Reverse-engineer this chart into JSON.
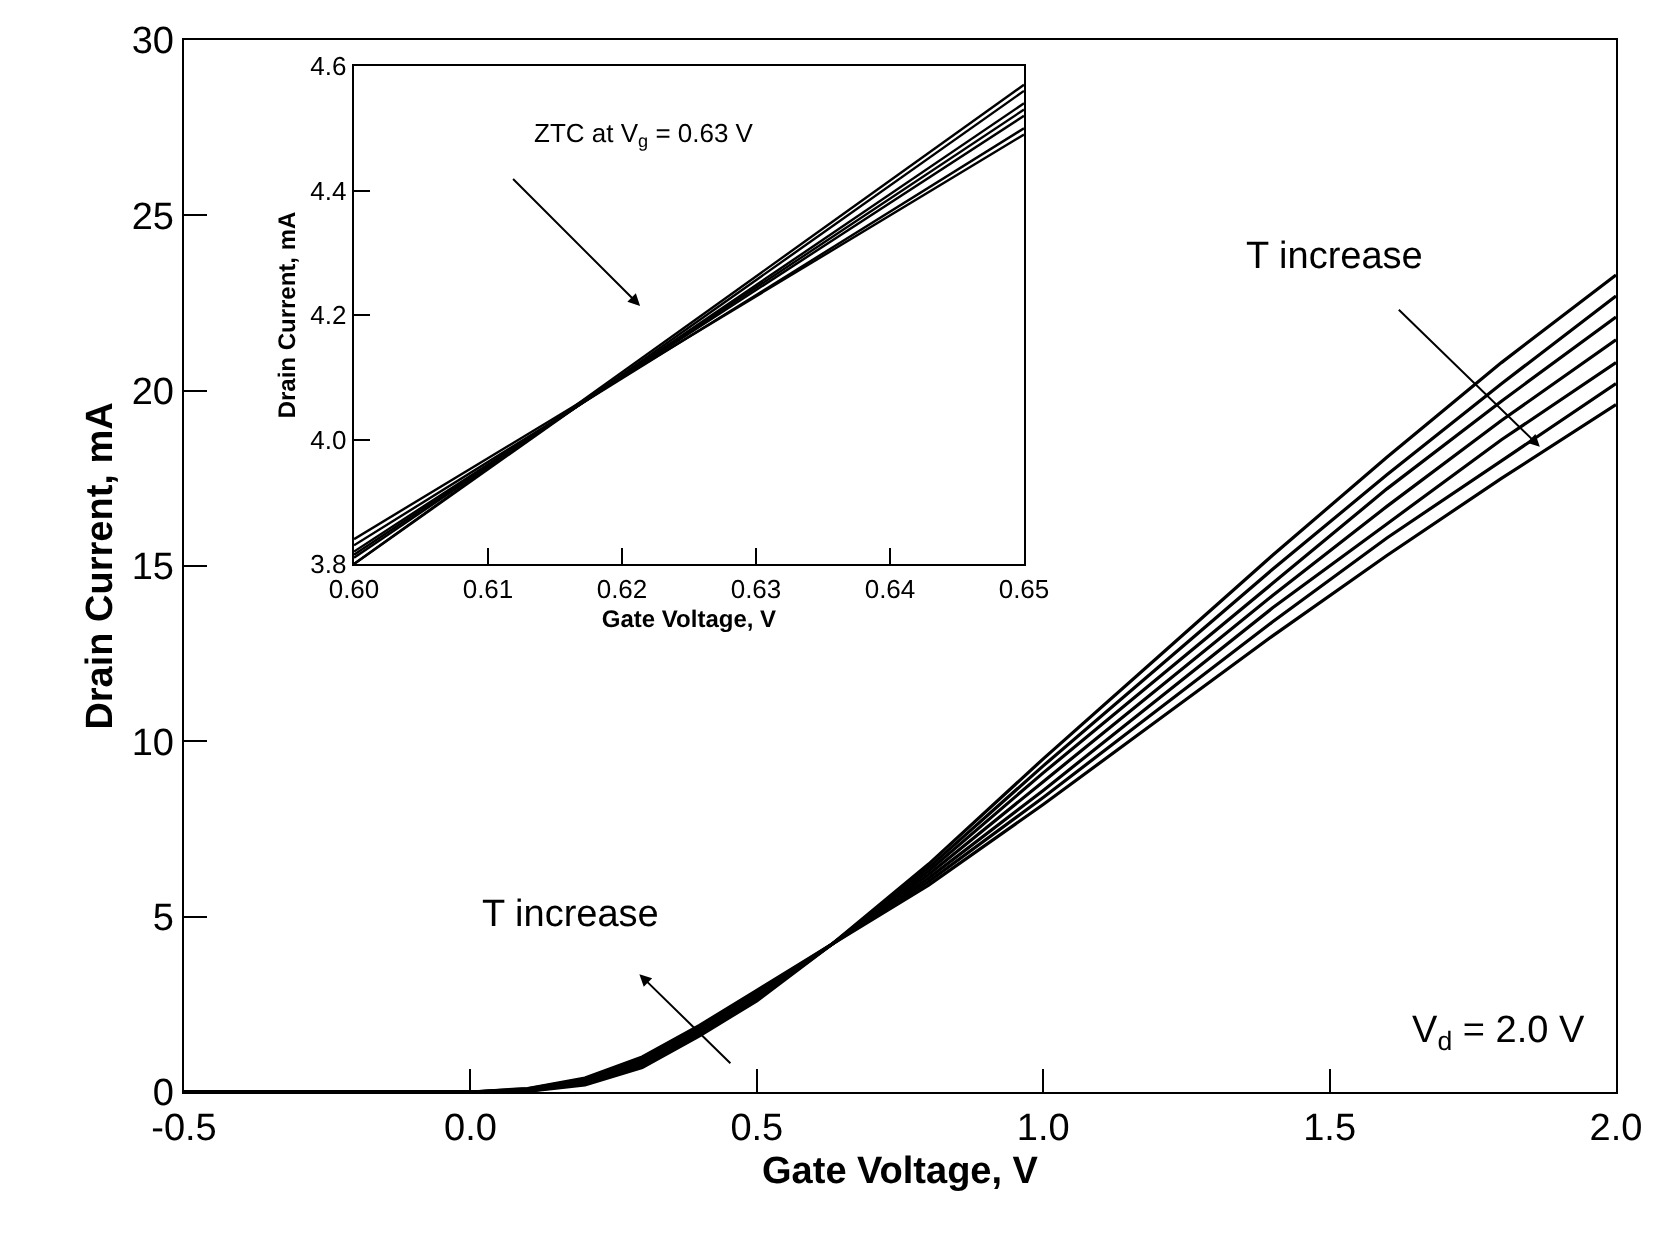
{
  "chart_data": [
    {
      "type": "line",
      "xlabel": "Gate Voltage, V",
      "ylabel": "Drain Current, mA",
      "x": [
        -0.5,
        0,
        0.1,
        0.2,
        0.3,
        0.4,
        0.5,
        0.63,
        0.8,
        1.0,
        1.2,
        1.4,
        1.6,
        1.8,
        2.0
      ],
      "series": [
        {
          "color": "#000000",
          "values": [
            0,
            0,
            0.02,
            0.2,
            0.7,
            1.6,
            2.6,
            4.2,
            6.5,
            9.5,
            12.4,
            15.3,
            18.1,
            20.8,
            23.3
          ]
        },
        {
          "color": "#000000",
          "values": [
            0,
            0,
            0.03,
            0.23,
            0.75,
            1.65,
            2.65,
            4.2,
            6.4,
            9.3,
            12.1,
            14.9,
            17.6,
            20.2,
            22.7
          ]
        },
        {
          "color": "#000000",
          "values": [
            0,
            0,
            0.05,
            0.27,
            0.8,
            1.7,
            2.7,
            4.2,
            6.3,
            9.1,
            11.8,
            14.5,
            17.2,
            19.7,
            22.1
          ]
        },
        {
          "color": "#000000",
          "values": [
            0,
            0,
            0.06,
            0.3,
            0.85,
            1.75,
            2.75,
            4.2,
            6.2,
            8.85,
            11.5,
            14.15,
            16.7,
            19.15,
            21.45
          ]
        },
        {
          "color": "#000000",
          "values": [
            0,
            0,
            0.07,
            0.33,
            0.9,
            1.8,
            2.8,
            4.2,
            6.1,
            8.6,
            11.2,
            13.8,
            16.2,
            18.6,
            20.8
          ]
        },
        {
          "color": "#000000",
          "values": [
            0,
            0,
            0.09,
            0.37,
            0.95,
            1.85,
            2.85,
            4.2,
            6.0,
            8.4,
            10.9,
            13.4,
            15.8,
            18.0,
            20.2
          ]
        },
        {
          "color": "#000000",
          "values": [
            0,
            0,
            0.1,
            0.4,
            1.0,
            1.9,
            2.9,
            4.2,
            5.9,
            8.2,
            10.6,
            13.0,
            15.3,
            17.5,
            19.6
          ]
        }
      ],
      "xlim": [
        -0.5,
        2.0
      ],
      "ylim": [
        0,
        30
      ],
      "xticks": [
        -0.5,
        {
          "value": 0,
          "label": "0.0"
        },
        0.5,
        {
          "value": 1,
          "label": "1.0"
        },
        1.5,
        {
          "value": 2,
          "label": "2.0"
        }
      ],
      "yticks": [
        0,
        5,
        10,
        15,
        20,
        25,
        30
      ],
      "grid": false,
      "marker": "none",
      "line_style": "solid",
      "annotations": [
        "T increase",
        {
          "text": "T increase",
          "x": 1.867,
          "y": 18.4
        },
        "V$_{d}$ = 2.0 V"
      ]
    },
    {
      "type": "line",
      "xlabel": "Gate Voltage, V",
      "ylabel": "Drain Current, mA",
      "x": [
        0.6,
        0.65
      ],
      "series": [
        {
          "color": "#000000",
          "values": [
            3.8,
            4.57
          ]
        },
        {
          "color": "#000000",
          "values": [
            3.8,
            4.56
          ]
        },
        {
          "color": "#000000",
          "values": [
            3.81,
            4.54
          ]
        },
        {
          "color": "#000000",
          "values": [
            3.815,
            4.53
          ]
        },
        {
          "color": "#000000",
          "values": [
            3.82,
            4.52
          ]
        },
        {
          "color": "#000000",
          "values": [
            3.83,
            4.5
          ]
        },
        {
          "color": "#000000",
          "values": [
            3.84,
            4.49
          ]
        }
      ],
      "xlim": [
        0.6,
        0.65
      ],
      "ylim": [
        3.8,
        4.6
      ],
      "xticks": [
        {
          "value": 0.6,
          "label": "0.60"
        },
        0.61,
        0.62,
        0.63,
        0.64,
        0.65
      ],
      "yticks": [
        3.8,
        {
          "value": 4,
          "label": "4.0"
        },
        4.2,
        4.4,
        4.6
      ],
      "grid": false,
      "marker": "none",
      "line_style": "solid",
      "annotations": [
        "ZTC at V$_{g}$ = 0.63 V"
      ]
    }
  ]
}
